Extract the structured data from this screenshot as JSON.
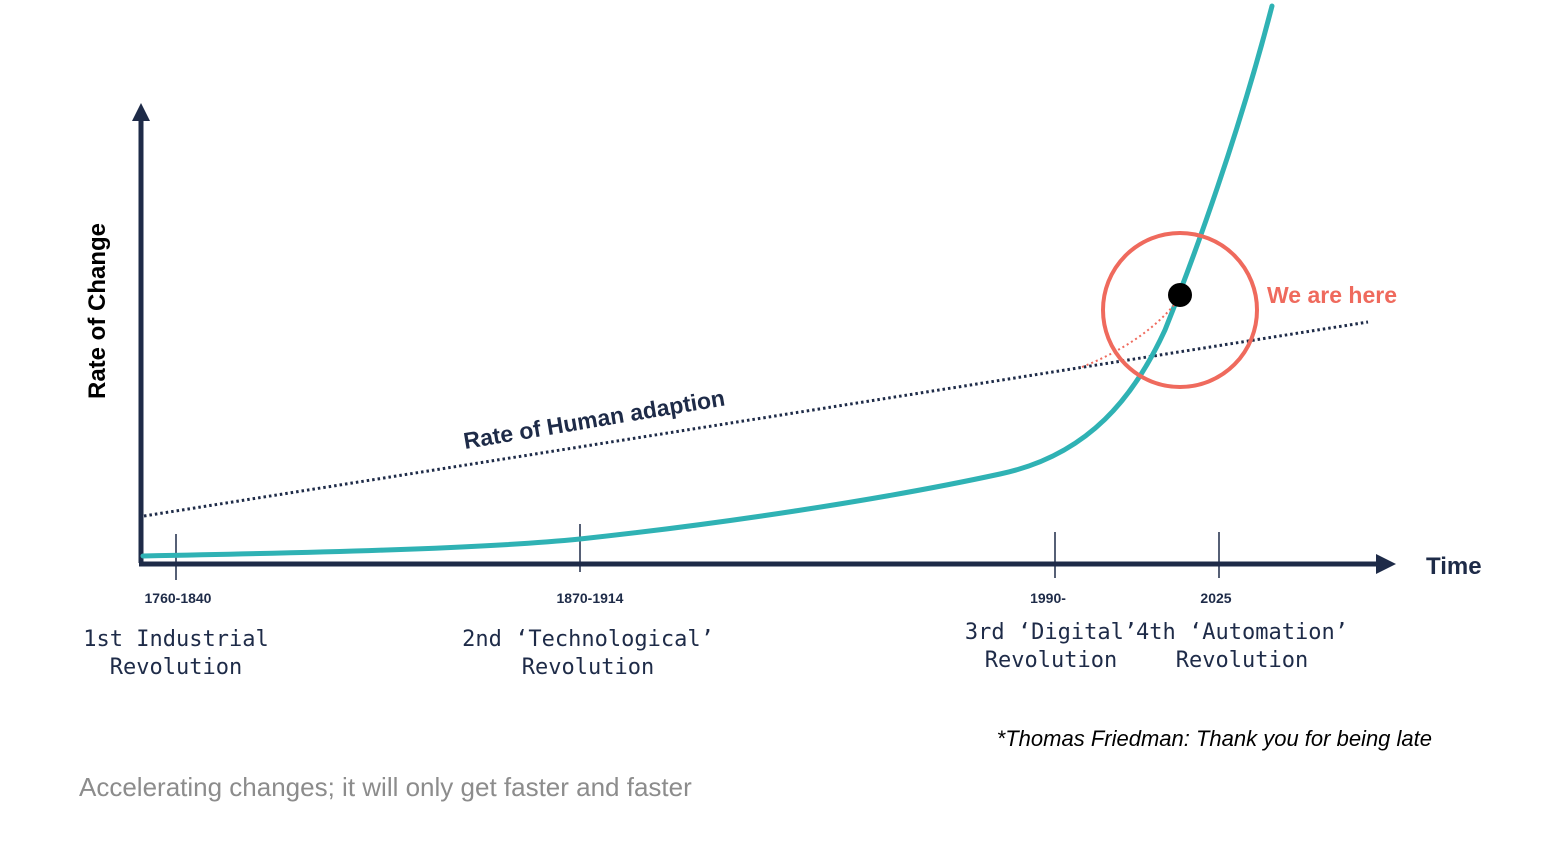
{
  "colors": {
    "axis": "#1e2b48",
    "curve": "#2fb2b4",
    "highlight": "#ef6a5d",
    "caption": "#8c8c8c",
    "marker": "#000000"
  },
  "axes": {
    "y_label": "Rate of Change",
    "x_label": "Time"
  },
  "lines": {
    "human_adaption_label": "Rate of Human adaption"
  },
  "marker": {
    "label": "We are here"
  },
  "eras": [
    {
      "date": "1760-1840",
      "name_line1": "1st Industrial",
      "name_line2": "Revolution"
    },
    {
      "date": "1870-1914",
      "name_line1": "2nd ‘Technological’",
      "name_line2": "Revolution"
    },
    {
      "date": "1990-",
      "name_line1": "3rd ‘Digital’",
      "name_line2": "Revolution"
    },
    {
      "date": "2025",
      "name_line1": "4th ‘Automation’",
      "name_line2": "Revolution"
    }
  ],
  "source_note": "*Thomas Friedman: Thank you for being late",
  "caption": "Accelerating changes; it will only get faster and faster"
}
